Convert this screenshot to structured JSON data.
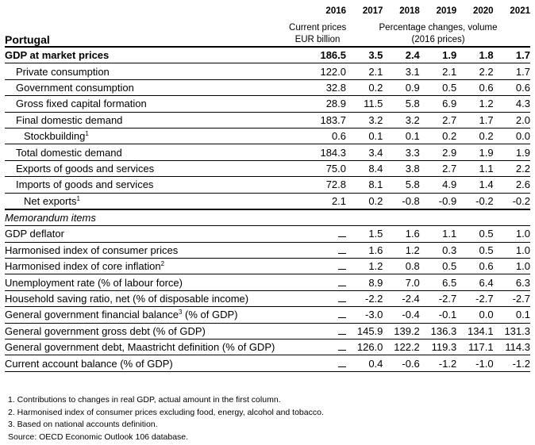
{
  "country": "Portugal",
  "years": [
    "2016",
    "2017",
    "2018",
    "2019",
    "2020",
    "2021"
  ],
  "units_levels": [
    "Current prices",
    "EUR billion"
  ],
  "units_changes": [
    "Percentage changes, volume",
    "(2016 prices)"
  ],
  "rows": [
    {
      "label": "GDP at market prices",
      "values": [
        "186.5",
        "3.5",
        "2.4",
        "1.9",
        "1.8",
        "1.7"
      ]
    },
    {
      "label": "Private consumption",
      "values": [
        "122.0",
        "2.1",
        "3.1",
        "2.1",
        "2.2",
        "1.7"
      ]
    },
    {
      "label": "Government consumption",
      "values": [
        "32.8",
        "0.2",
        "0.9",
        "0.5",
        "0.6",
        "0.6"
      ]
    },
    {
      "label": "Gross fixed capital formation",
      "values": [
        "28.9",
        "11.5",
        "5.8",
        "6.9",
        "1.2",
        "4.3"
      ]
    },
    {
      "label": "Final domestic demand",
      "values": [
        "183.7",
        "3.2",
        "3.2",
        "2.7",
        "1.7",
        "2.0"
      ]
    },
    {
      "label": "Stockbuilding",
      "sup": "1",
      "values": [
        "0.6",
        "0.1",
        "0.1",
        "0.2",
        "0.2",
        "0.0"
      ]
    },
    {
      "label": "Total domestic demand",
      "values": [
        "184.3",
        "3.4",
        "3.3",
        "2.9",
        "1.9",
        "1.9"
      ]
    },
    {
      "label": "Exports of goods and services",
      "values": [
        "75.0",
        "8.4",
        "3.8",
        "2.7",
        "1.1",
        "2.2"
      ]
    },
    {
      "label": "Imports of goods and services",
      "values": [
        "72.8",
        "8.1",
        "5.8",
        "4.9",
        "1.4",
        "2.6"
      ]
    },
    {
      "label": "Net exports",
      "sup": "1",
      "values": [
        "2.1",
        "0.2",
        "-0.8",
        "-0.9",
        "-0.2",
        "-0.2"
      ]
    }
  ],
  "memo_title": "Memorandum items",
  "memo_rows": [
    {
      "label": "GDP deflator",
      "values": [
        "1.5",
        "1.6",
        "1.1",
        "0.5",
        "1.0"
      ]
    },
    {
      "label": "Harmonised index of consumer prices",
      "values": [
        "1.6",
        "1.2",
        "0.3",
        "0.5",
        "1.0"
      ]
    },
    {
      "label": "Harmonised index of core inflation",
      "sup": "2",
      "values": [
        "1.2",
        "0.8",
        "0.5",
        "0.6",
        "1.0"
      ]
    },
    {
      "label": "Unemployment rate (% of labour force)",
      "values": [
        "8.9",
        "7.0",
        "6.5",
        "6.4",
        "6.3"
      ]
    },
    {
      "label": "Household saving ratio, net (% of disposable income)",
      "values": [
        "-2.2",
        "-2.4",
        "-2.7",
        "-2.7",
        "-2.7"
      ]
    },
    {
      "label": "General government financial balance",
      "sup": "3",
      "suffix": " (% of GDP)",
      "values": [
        "-3.0",
        "-0.4",
        "-0.1",
        "0.0",
        "0.1"
      ]
    },
    {
      "label": "General government gross debt (% of GDP)",
      "values": [
        "145.9",
        "139.2",
        "136.3",
        "134.1",
        "131.3"
      ]
    },
    {
      "label": "General government debt, Maastricht definition (% of GDP)",
      "values": [
        "126.0",
        "122.2",
        "119.3",
        "117.1",
        "114.3"
      ]
    },
    {
      "label": "Current account balance (% of GDP)",
      "values": [
        "0.4",
        "-0.6",
        "-1.2",
        "-1.0",
        "-1.2"
      ]
    }
  ],
  "notes": [
    "1. Contributions to changes in real GDP, actual amount in the first column.",
    "2. Harmonised index of consumer prices excluding food, energy, alcohol and tobacco.",
    "3. Based on national accounts definition.",
    "Source:   OECD Economic Outlook 106 database."
  ]
}
